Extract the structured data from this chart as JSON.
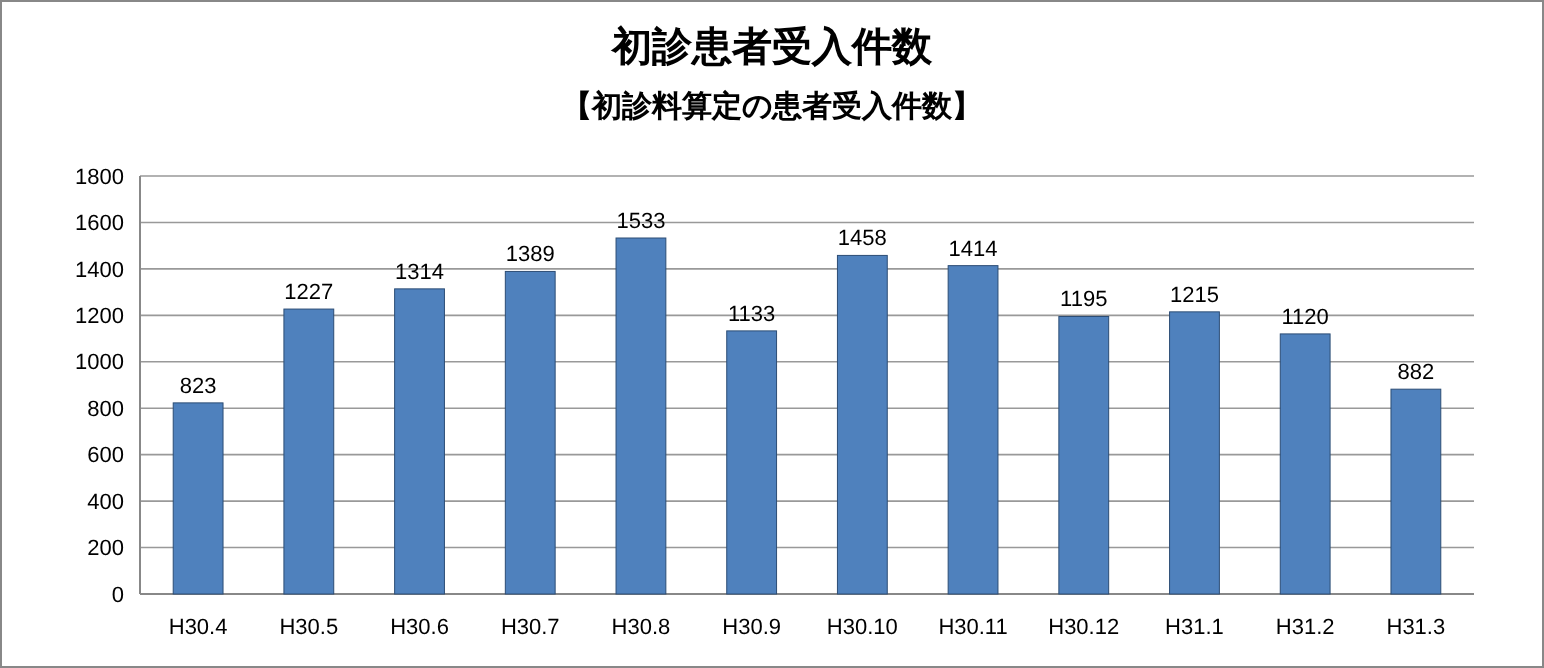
{
  "chart_data": {
    "type": "bar",
    "title": "初診患者受入件数",
    "subtitle": "【初診料算定の患者受入件数】",
    "categories": [
      "H30.4",
      "H30.5",
      "H30.6",
      "H30.7",
      "H30.8",
      "H30.9",
      "H30.10",
      "H30.11",
      "H30.12",
      "H31.1",
      "H31.2",
      "H31.3"
    ],
    "values": [
      823,
      1227,
      1314,
      1389,
      1533,
      1133,
      1458,
      1414,
      1195,
      1215,
      1120,
      882
    ],
    "color": "#4f81bd",
    "ylim": [
      0,
      1800
    ],
    "yticks": [
      0,
      200,
      400,
      600,
      800,
      1000,
      1200,
      1400,
      1600,
      1800
    ],
    "grid": "y",
    "data_labels": true
  }
}
